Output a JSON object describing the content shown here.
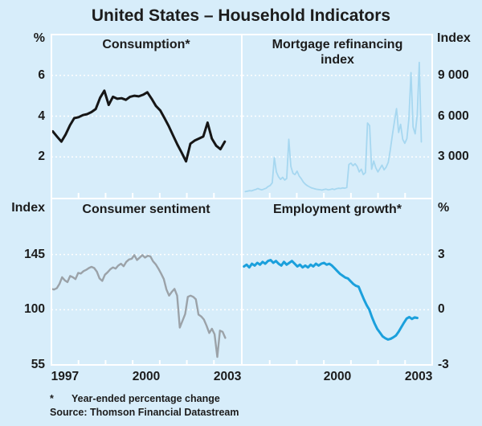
{
  "title": "United States – Household Indicators",
  "footnotes": {
    "asterisk": "*",
    "note": "Year-ended percentage change",
    "source": "Source: Thomson Financial Datastream"
  },
  "colors": {
    "background": "#d7edfa",
    "grid": "#ffffff",
    "text": "#1c1c1c",
    "consumption": "#161616",
    "mortgage": "#a6d7f0",
    "sentiment": "#9ba2a8",
    "employment": "#1ba0dc"
  },
  "chart_data": [
    {
      "type": "line",
      "key": "consumption",
      "title": "Consumption*",
      "axis_unit": "%",
      "axis_side": "left",
      "ylim": [
        0,
        8
      ],
      "yticks": [
        {
          "label": "6",
          "value": 6
        },
        {
          "label": "4",
          "value": 4
        },
        {
          "label": "2",
          "value": 2
        }
      ],
      "xlim": [
        1997,
        2004
      ],
      "xtick_labels": [],
      "x_start": 1997.05,
      "x_end": 2003.4,
      "line_width": 3,
      "values": [
        3.25,
        3.0,
        2.75,
        3.1,
        3.55,
        3.9,
        3.95,
        4.05,
        4.1,
        4.2,
        4.35,
        4.9,
        5.25,
        4.55,
        4.95,
        4.85,
        4.88,
        4.8,
        4.95,
        5.0,
        4.97,
        5.05,
        5.17,
        4.85,
        4.5,
        4.28,
        3.9,
        3.5,
        3.05,
        2.6,
        2.2,
        1.78,
        2.65,
        2.8,
        2.9,
        3.0,
        3.68,
        2.9,
        2.55,
        2.38,
        2.75
      ]
    },
    {
      "type": "line",
      "key": "mortgage",
      "title": "Mortgage refinancing index",
      "axis_unit": "Index",
      "axis_side": "right",
      "ylim": [
        0,
        12000
      ],
      "yticks": [
        {
          "label": "9 000",
          "value": 9000
        },
        {
          "label": "6 000",
          "value": 6000
        },
        {
          "label": "3 000",
          "value": 3000
        }
      ],
      "xlim": [
        1997,
        2004
      ],
      "xtick_labels": [],
      "x_start": 1997.1,
      "x_end": 2003.6,
      "line_width": 1.8,
      "values": [
        450,
        480,
        520,
        500,
        560,
        600,
        680,
        620,
        580,
        640,
        700,
        820,
        900,
        1100,
        2950,
        1900,
        1550,
        1350,
        1500,
        1300,
        1420,
        4300,
        2300,
        1800,
        1700,
        1950,
        1600,
        1400,
        1150,
        1000,
        880,
        800,
        720,
        680,
        640,
        610,
        590,
        560,
        600,
        630,
        580,
        610,
        650,
        600,
        660,
        700,
        680,
        720,
        700,
        750,
        2450,
        2550,
        2350,
        2500,
        2300,
        1900,
        2100,
        1700,
        1850,
        5500,
        5300,
        2100,
        2700,
        2200,
        1900,
        2150,
        2400,
        2050,
        2250,
        2600,
        3500,
        4600,
        5600,
        6550,
        4800,
        5400,
        4300,
        4000,
        4350,
        5800,
        9200,
        5200,
        4700,
        6100,
        9950,
        4100
      ]
    },
    {
      "type": "line",
      "key": "sentiment",
      "title": "Consumer sentiment",
      "axis_unit": "Index",
      "axis_side": "left",
      "ylim": [
        55,
        190
      ],
      "yticks": [
        {
          "label": "145",
          "value": 145
        },
        {
          "label": "100",
          "value": 100
        },
        {
          "label": "55",
          "value": 55
        }
      ],
      "xlim": [
        1997,
        2004
      ],
      "xtick_labels": [
        {
          "label": "1997",
          "year": 1997.5
        },
        {
          "label": "2000",
          "year": 2000.5
        },
        {
          "label": "2003",
          "year": 2003.5
        }
      ],
      "x_start": 1997.0,
      "x_end": 2003.42,
      "line_width": 2.4,
      "values": [
        117,
        116.5,
        117.5,
        121,
        126.5,
        124,
        122.5,
        127.5,
        126.5,
        125,
        130,
        129.5,
        131.5,
        132.5,
        134,
        135,
        134,
        131,
        125.5,
        123.5,
        128.5,
        130.5,
        133,
        134.5,
        133.5,
        136,
        137.5,
        135.5,
        139,
        141,
        141.5,
        144.5,
        140.5,
        142.5,
        144.5,
        142.5,
        144,
        143.5,
        139.5,
        137,
        133.5,
        129.5,
        125,
        116.5,
        111.5,
        114.5,
        117,
        111.5,
        85.5,
        91,
        96.5,
        110.5,
        111.5,
        110.5,
        108.5,
        96,
        94.5,
        92,
        87,
        81,
        84.5,
        80,
        61.5,
        83,
        82,
        77
      ]
    },
    {
      "type": "line",
      "key": "employment",
      "title": "Employment growth*",
      "axis_unit": "%",
      "axis_side": "right",
      "ylim": [
        -3,
        6
      ],
      "yticks": [
        {
          "label": "3",
          "value": 3
        },
        {
          "label": "0",
          "value": 0
        },
        {
          "label": "-3",
          "value": -3
        }
      ],
      "xlim": [
        1997,
        2004
      ],
      "xtick_labels": [
        {
          "label": "2000",
          "year": 2000.5
        },
        {
          "label": "2003",
          "year": 2003.5
        }
      ],
      "x_start": 1997.05,
      "x_end": 2003.45,
      "line_width": 3,
      "values": [
        2.35,
        2.45,
        2.3,
        2.5,
        2.4,
        2.55,
        2.45,
        2.6,
        2.5,
        2.65,
        2.7,
        2.55,
        2.65,
        2.5,
        2.4,
        2.6,
        2.45,
        2.55,
        2.65,
        2.5,
        2.35,
        2.45,
        2.3,
        2.4,
        2.3,
        2.45,
        2.35,
        2.5,
        2.4,
        2.5,
        2.55,
        2.45,
        2.5,
        2.4,
        2.25,
        2.1,
        1.95,
        1.85,
        1.75,
        1.7,
        1.55,
        1.4,
        1.3,
        1.25,
        0.9,
        0.55,
        0.25,
        0.0,
        -0.4,
        -0.75,
        -1.05,
        -1.25,
        -1.45,
        -1.55,
        -1.62,
        -1.58,
        -1.5,
        -1.4,
        -1.2,
        -0.95,
        -0.7,
        -0.48,
        -0.4,
        -0.5,
        -0.42,
        -0.45
      ]
    }
  ]
}
